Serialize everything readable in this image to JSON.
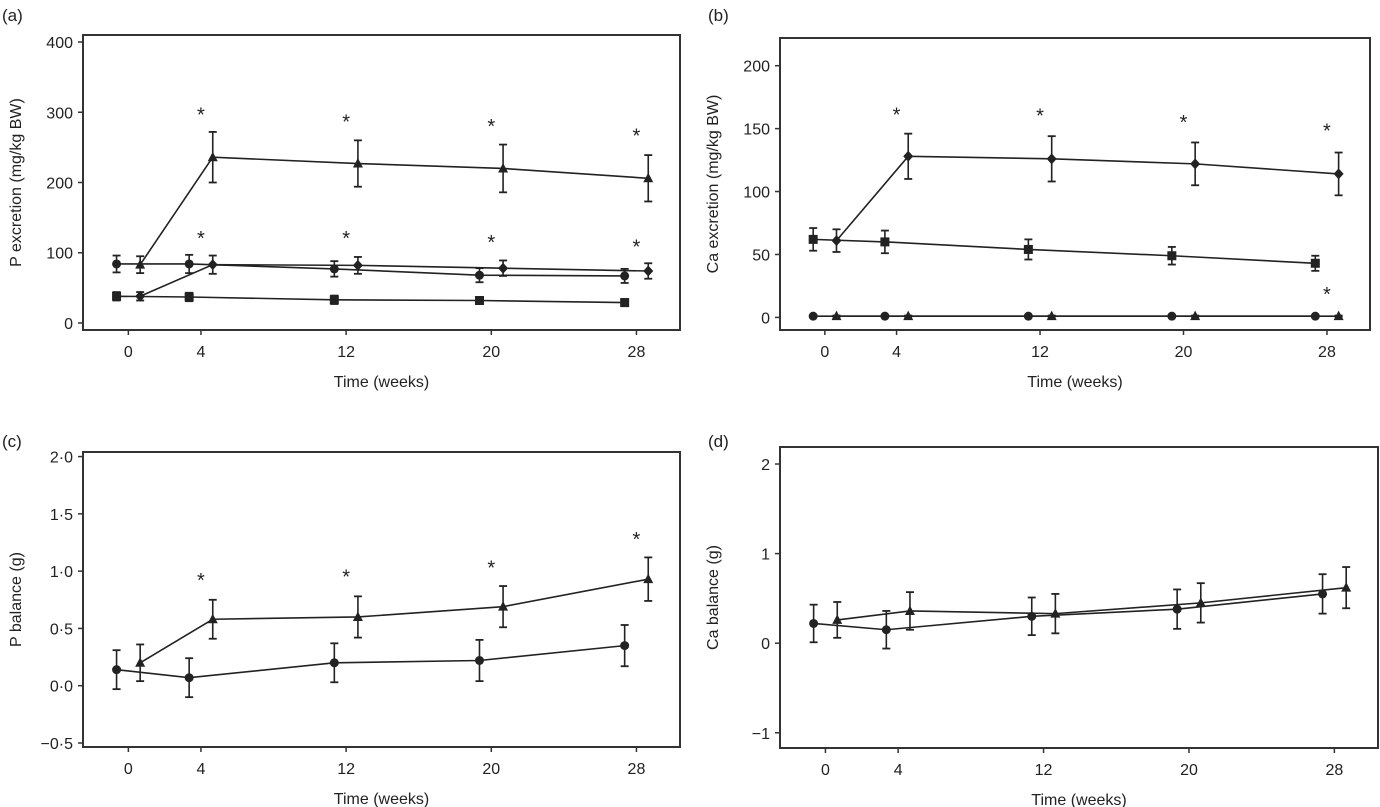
{
  "chart_data": [
    {
      "panel": "(a)",
      "type": "line",
      "xlabel": "Time (weeks)",
      "ylabel": "P excretion (mg/kg BW)",
      "x": [
        0,
        4,
        12,
        20,
        28
      ],
      "xticks": [
        "0",
        "4",
        "12",
        "20",
        "28"
      ],
      "yticks": [
        0,
        100,
        200,
        300,
        400
      ],
      "ytick_labels": [
        "0",
        "100",
        "200",
        "300",
        "400"
      ],
      "ylim": [
        -10,
        410
      ],
      "grid": false,
      "series": [
        {
          "marker": "circle",
          "offset": "left",
          "values": [
            84,
            84,
            77,
            68,
            67
          ],
          "err": [
            12,
            13,
            11,
            10,
            10
          ]
        },
        {
          "marker": "square",
          "offset": "left",
          "values": [
            38,
            37,
            33,
            32,
            29
          ],
          "err": [
            6,
            6,
            6,
            5,
            5
          ]
        },
        {
          "marker": "triangle",
          "offset": "right",
          "values": [
            83,
            236,
            227,
            220,
            206
          ],
          "err": [
            12,
            36,
            33,
            34,
            33
          ]
        },
        {
          "marker": "diamond",
          "offset": "right",
          "values": [
            38,
            83,
            82,
            78,
            74
          ],
          "err": [
            6,
            13,
            12,
            11,
            11
          ]
        }
      ],
      "annotations": [
        {
          "text": "*",
          "x": 4,
          "y": 300
        },
        {
          "text": "*",
          "x": 12,
          "y": 290
        },
        {
          "text": "*",
          "x": 20,
          "y": 283
        },
        {
          "text": "*",
          "x": 28,
          "y": 270
        },
        {
          "text": "*",
          "x": 4,
          "y": 124
        },
        {
          "text": "*",
          "x": 12,
          "y": 124
        },
        {
          "text": "*",
          "x": 20,
          "y": 118
        },
        {
          "text": "*",
          "x": 28,
          "y": 112
        }
      ]
    },
    {
      "panel": "(b)",
      "type": "line",
      "xlabel": "Time (weeks)",
      "ylabel": "Ca excretion (mg/kg BW)",
      "x": [
        0,
        4,
        12,
        20,
        28
      ],
      "xticks": [
        "0",
        "4",
        "12",
        "20",
        "28"
      ],
      "yticks": [
        0,
        50,
        100,
        150,
        200
      ],
      "ytick_labels": [
        "0",
        "50",
        "100",
        "150",
        "200"
      ],
      "ylim": [
        -10,
        222
      ],
      "grid": false,
      "series": [
        {
          "marker": "square",
          "offset": "left",
          "values": [
            62,
            60,
            54,
            49,
            43
          ],
          "err": [
            9,
            9,
            8,
            7,
            6
          ]
        },
        {
          "marker": "diamond",
          "offset": "right",
          "values": [
            61,
            128,
            126,
            122,
            114
          ],
          "err": [
            9,
            18,
            18,
            17,
            17
          ]
        },
        {
          "marker": "circle",
          "offset": "left",
          "values": [
            1,
            1,
            1,
            1,
            1
          ],
          "err": [
            0.5,
            0.5,
            0.5,
            0.5,
            0.5
          ]
        },
        {
          "marker": "triangle",
          "offset": "right",
          "values": [
            1,
            1,
            1,
            1,
            1
          ],
          "err": [
            0.5,
            0.5,
            0.5,
            0.5,
            0.5
          ]
        }
      ],
      "annotations": [
        {
          "text": "*",
          "x": 4,
          "y": 163
        },
        {
          "text": "*",
          "x": 12,
          "y": 162
        },
        {
          "text": "*",
          "x": 20,
          "y": 157
        },
        {
          "text": "*",
          "x": 28,
          "y": 150
        },
        {
          "text": "*",
          "x": 28,
          "y": 20
        }
      ]
    },
    {
      "panel": "(c)",
      "type": "line",
      "xlabel": "Time (weeks)",
      "ylabel": "P balance (g)",
      "x": [
        0,
        4,
        12,
        20,
        28
      ],
      "xticks": [
        "0",
        "4",
        "12",
        "20",
        "28"
      ],
      "yticks": [
        -0.5,
        0,
        0.5,
        1,
        1.5,
        2
      ],
      "ytick_labels": [
        "−0·5",
        "0·0",
        "0·5",
        "1·0",
        "1·5",
        "2·0"
      ],
      "ylim": [
        -0.535,
        2.04
      ],
      "grid": false,
      "series": [
        {
          "marker": "circle",
          "offset": "left",
          "values": [
            0.14,
            0.07,
            0.2,
            0.22,
            0.35
          ],
          "err": [
            0.17,
            0.17,
            0.17,
            0.18,
            0.18
          ]
        },
        {
          "marker": "triangle",
          "offset": "right",
          "values": [
            0.2,
            0.58,
            0.6,
            0.69,
            0.93
          ],
          "err": [
            0.16,
            0.17,
            0.18,
            0.18,
            0.19
          ]
        }
      ],
      "annotations": [
        {
          "text": "*",
          "x": 4,
          "y": 0.94
        },
        {
          "text": "*",
          "x": 12,
          "y": 0.97
        },
        {
          "text": "*",
          "x": 20,
          "y": 1.05
        },
        {
          "text": "*",
          "x": 28,
          "y": 1.3
        }
      ]
    },
    {
      "panel": "(d)",
      "type": "line",
      "xlabel": "Time (weeks)",
      "ylabel": "Ca balance (g)",
      "x": [
        0,
        4,
        12,
        20,
        28
      ],
      "xticks": [
        "0",
        "4",
        "12",
        "20",
        "28"
      ],
      "yticks": [
        -1,
        0,
        1,
        2
      ],
      "ytick_labels": [
        "−1",
        "0",
        "1",
        "2"
      ],
      "ylim": [
        -1.17,
        2.19
      ],
      "grid": false,
      "series": [
        {
          "marker": "circle",
          "offset": "left",
          "values": [
            0.22,
            0.15,
            0.3,
            0.38,
            0.55
          ],
          "err": [
            0.21,
            0.21,
            0.21,
            0.22,
            0.22
          ]
        },
        {
          "marker": "triangle",
          "offset": "right",
          "values": [
            0.26,
            0.36,
            0.33,
            0.45,
            0.62
          ],
          "err": [
            0.2,
            0.21,
            0.22,
            0.22,
            0.23
          ]
        }
      ],
      "annotations": []
    }
  ]
}
